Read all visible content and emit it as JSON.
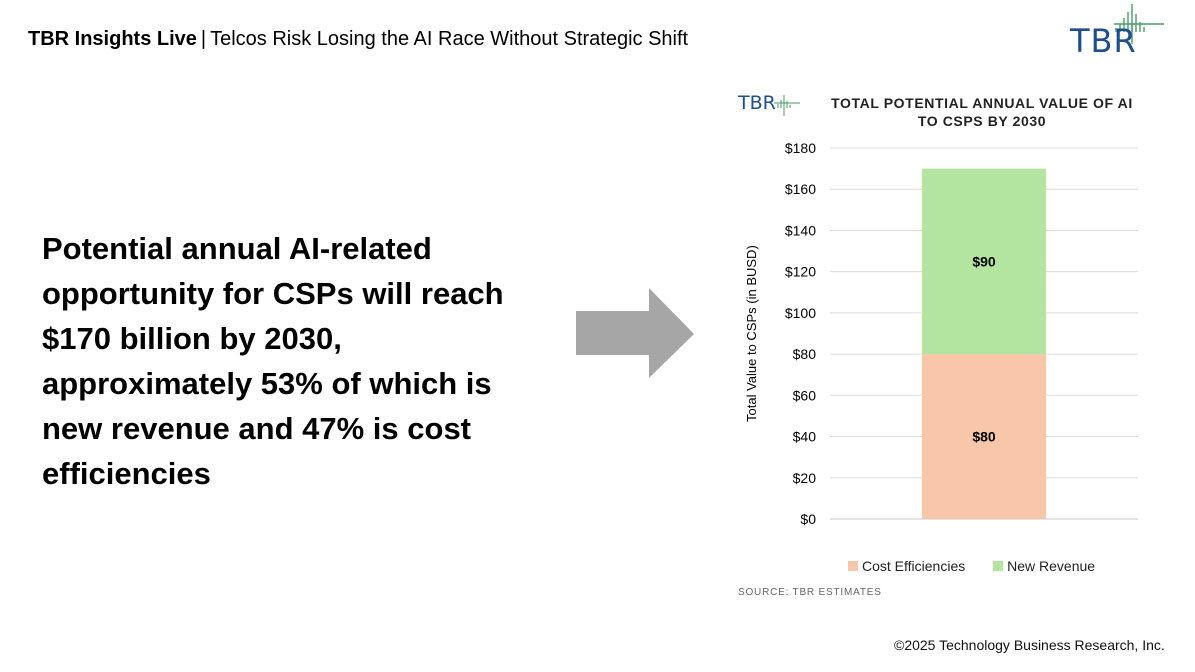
{
  "header": {
    "brand": "TBR Insights Live",
    "separator": "|",
    "title": "Telcos Risk Losing the AI Race Without Strategic Shift"
  },
  "logo": {
    "text": "TBR",
    "icon": "tbr-spark-icon",
    "color": "#1f4e8c"
  },
  "headline": "Potential annual AI-related opportunity for CSPs will reach $170 billion by 2030, approximately 53% of which is new revenue and 47% is cost efficiencies",
  "arrow": {
    "icon": "right-arrow-icon",
    "color": "#a6a6a6"
  },
  "chart_data": {
    "type": "bar",
    "stacked": true,
    "title": "TOTAL POTENTIAL ANNUAL VALUE OF AI TO CSPS BY 2030",
    "ylabel": "Total Value to CSPs (in BUSD)",
    "xlabel": "",
    "ylim": [
      0,
      180
    ],
    "yticks": [
      "$0",
      "$20",
      "$40",
      "$60",
      "$80",
      "$100",
      "$120",
      "$140",
      "$160",
      "$180"
    ],
    "ytick_values": [
      0,
      20,
      40,
      60,
      80,
      100,
      120,
      140,
      160,
      180
    ],
    "grid": true,
    "legend_position": "bottom",
    "categories": [
      ""
    ],
    "series": [
      {
        "name": "Cost Efficiencies",
        "values": [
          80
        ],
        "label": "$80",
        "color": "#f8c6a8"
      },
      {
        "name": "New Revenue",
        "values": [
          90
        ],
        "label": "$90",
        "color": "#b3e4a0"
      }
    ],
    "source": "SOURCE: TBR ESTIMATES",
    "chart_logo_text": "TBR"
  },
  "footer": {
    "copyright": "©2025 Technology Business Research, Inc."
  }
}
